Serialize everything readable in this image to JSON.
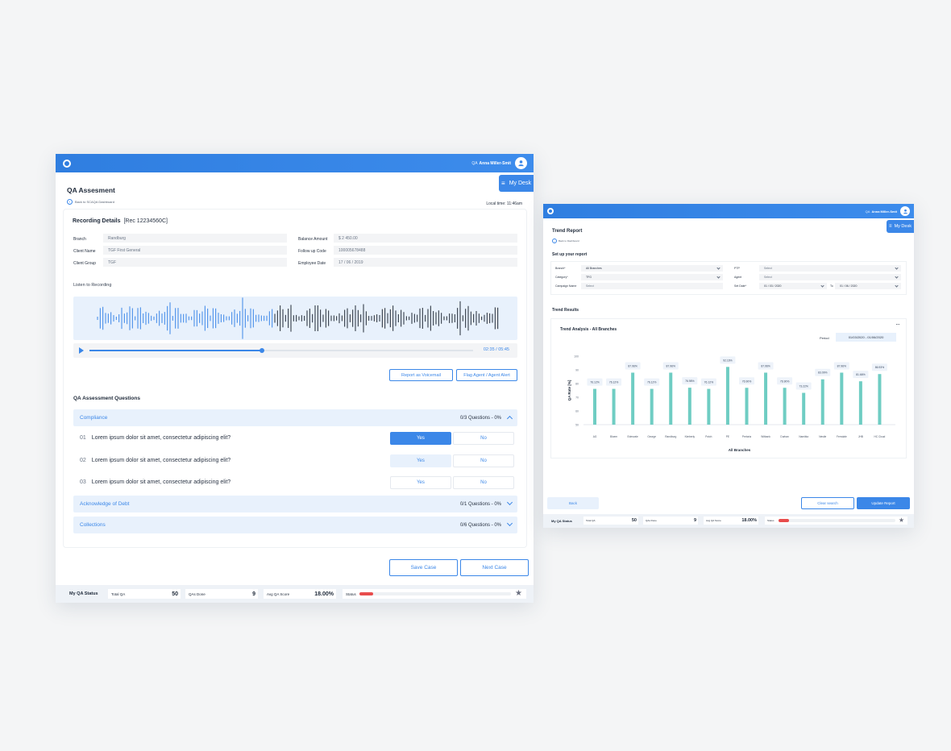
{
  "left": {
    "user": {
      "role": "QA",
      "name": "Anna Miller-Smit"
    },
    "my_desk": "My Desk",
    "title": "QA Assesment",
    "back_link": "Back to SCAQA Dashboard",
    "local_time": "Local time: 11:46am",
    "recording_title": "Recording Details",
    "recording_ref": "[Rec 12234560C]",
    "details": [
      {
        "label": "Branch",
        "value": "Randburg"
      },
      {
        "label": "Client Name",
        "value": "TGF First General"
      },
      {
        "label": "Client Group",
        "value": "TGF"
      },
      {
        "label": "Balance Amount",
        "value": "$ 2 450.00"
      },
      {
        "label": "Follow up Code",
        "value": "100005678488"
      },
      {
        "label": "Employee Date",
        "value": "17 / 06 / 2019"
      }
    ],
    "listen_label": "Listen to Recording",
    "player_time": "02:35 / 05:45",
    "player_progress": 0.45,
    "report_voicemail": "Report as Voicemail",
    "flag_agent": "Flag Agent / Agent Alert",
    "questions_title": "QA Assessment Questions",
    "sections": [
      {
        "name": "Compliance",
        "count": "0/3 Questions - 0%"
      },
      {
        "name": "Acknowledge of Debt",
        "count": "0/1 Questions - 0%"
      },
      {
        "name": "Collections",
        "count": "0/6 Questions - 0%"
      }
    ],
    "questions": [
      {
        "num": "01",
        "text": "Lorem ipsum dolor sit amet, consectetur adipiscing elit?"
      },
      {
        "num": "02",
        "text": "Lorem ipsum dolor sit amet, consectetur adipiscing elit?"
      },
      {
        "num": "03",
        "text": "Lorem ipsum dolor sit amet, consectetur adipiscing elit?"
      }
    ],
    "yes": "Yes",
    "no": "No",
    "save_case": "Save Case",
    "next_case": "Next Case"
  },
  "status": {
    "my_qa": "My QA Status",
    "total_label": "Total QA",
    "total_value": "50",
    "done_label": "QAs Done",
    "done_value": "9",
    "avg_label": "Avg QA Score",
    "avg_value": "18.00%",
    "status_label": "Status",
    "status_progress": 0.09
  },
  "right": {
    "user": {
      "role": "QA",
      "name": "Anna Miller-Smit"
    },
    "my_desk": "My Desk",
    "title": "Trend Report",
    "back_link": "Back to Dashboard",
    "setup_title": "Set up your report",
    "filters": {
      "branch_label": "Branch*",
      "branch_value": "All Branches",
      "category_label": "Category*",
      "category_value": "TFG",
      "campaign_label": "Campaign Name",
      "campaign_value": "Select",
      "ptp_label": "PTP",
      "ptp_value": "Select",
      "agent_label": "Agent",
      "agent_value": "Select",
      "date_label": "Set Date*",
      "date_from": "01 / 03 / 2020",
      "date_to_label": "To",
      "date_to": "01 / 06 / 2020"
    },
    "results_title": "Trend Results",
    "chart_title": "Trend Analysis - All Branches",
    "period_label": "Period",
    "period_value": "01/03/2020 - 01/06/2020",
    "back": "Back",
    "clear": "Clear search",
    "update": "Update Report"
  },
  "chart_data": {
    "type": "bar",
    "title": "Trend Analysis - All Branches",
    "xlabel": "All Branches",
    "ylabel": "QA Rate [%]",
    "ylim": [
      50,
      100
    ],
    "yticks": [
      50,
      60,
      70,
      80,
      90,
      100
    ],
    "categories": [
      "AG",
      "Bloem",
      "Edenvale",
      "George",
      "Randburg",
      "Kimberly",
      "Potch",
      "PE",
      "Pretoria",
      "Witbank",
      "Durban",
      "Namibia",
      "Nestle",
      "Ferndale",
      "JHB",
      "HC Cloud"
    ],
    "values": [
      76.12,
      76.12,
      87.96,
      76.12,
      87.96,
      76.98,
      76.12,
      92.16,
      76.9,
      87.96,
      76.9,
      73.22,
      83.09,
      87.96,
      81.66,
      86.93
    ],
    "labels": [
      "76.12%",
      "76.12%",
      "87.96%",
      "76.12%",
      "87.96%",
      "76.98%",
      "76.12%",
      "92.16%",
      "76.90%",
      "87.96%",
      "76.90%",
      "73.22%",
      "83.09%",
      "87.96%",
      "81.66%",
      "86.93%"
    ],
    "bar_color": "#6fcdc3",
    "grid": false
  },
  "colors": {
    "accent": "#3b87e8",
    "bar": "#6fcdc3",
    "status_red": "#e84c4c"
  }
}
